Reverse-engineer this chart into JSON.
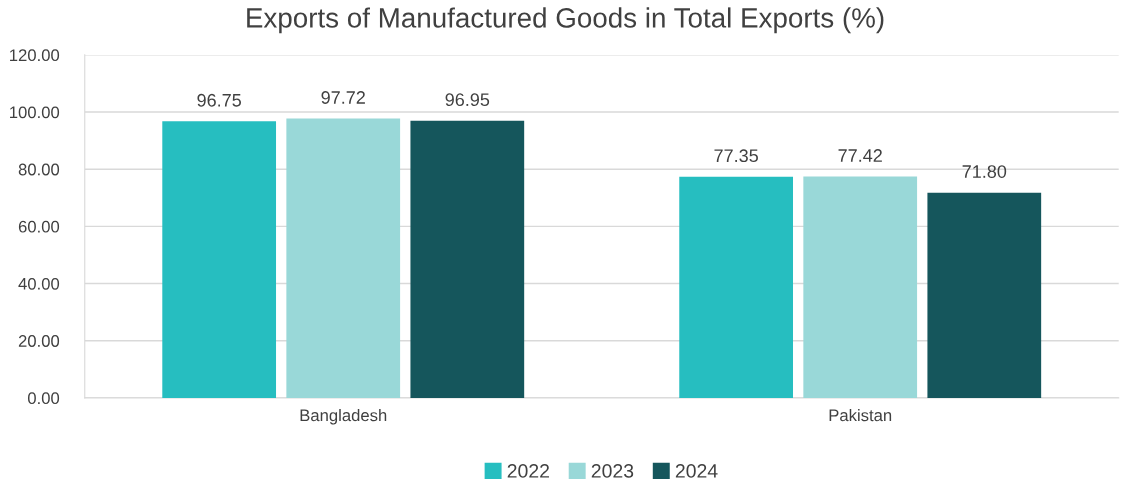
{
  "chart_data": {
    "type": "bar",
    "title": "Exports of Manufactured Goods in Total Exports (%)",
    "categories": [
      "Bangladesh",
      "Pakistan"
    ],
    "series": [
      {
        "name": "2022",
        "color": "#26bec0",
        "values": [
          96.75,
          77.35
        ],
        "value_labels": [
          "96.75",
          "77.35"
        ]
      },
      {
        "name": "2023",
        "color": "#99d8d8",
        "values": [
          97.72,
          77.42
        ],
        "value_labels": [
          "97.72",
          "77.42"
        ]
      },
      {
        "name": "2024",
        "color": "#15565c",
        "values": [
          96.95,
          71.8
        ],
        "value_labels": [
          "96.95",
          "71.80"
        ]
      }
    ],
    "ylim": [
      0,
      120
    ],
    "yticks": [
      {
        "value": 0,
        "label": "0.00"
      },
      {
        "value": 20,
        "label": "20.00"
      },
      {
        "value": 40,
        "label": "40.00"
      },
      {
        "value": 60,
        "label": "60.00"
      },
      {
        "value": 80,
        "label": "80.00"
      },
      {
        "value": 100,
        "label": "100.00"
      },
      {
        "value": 120,
        "label": "120.00"
      }
    ],
    "grid": "y",
    "legend": "bottom"
  }
}
